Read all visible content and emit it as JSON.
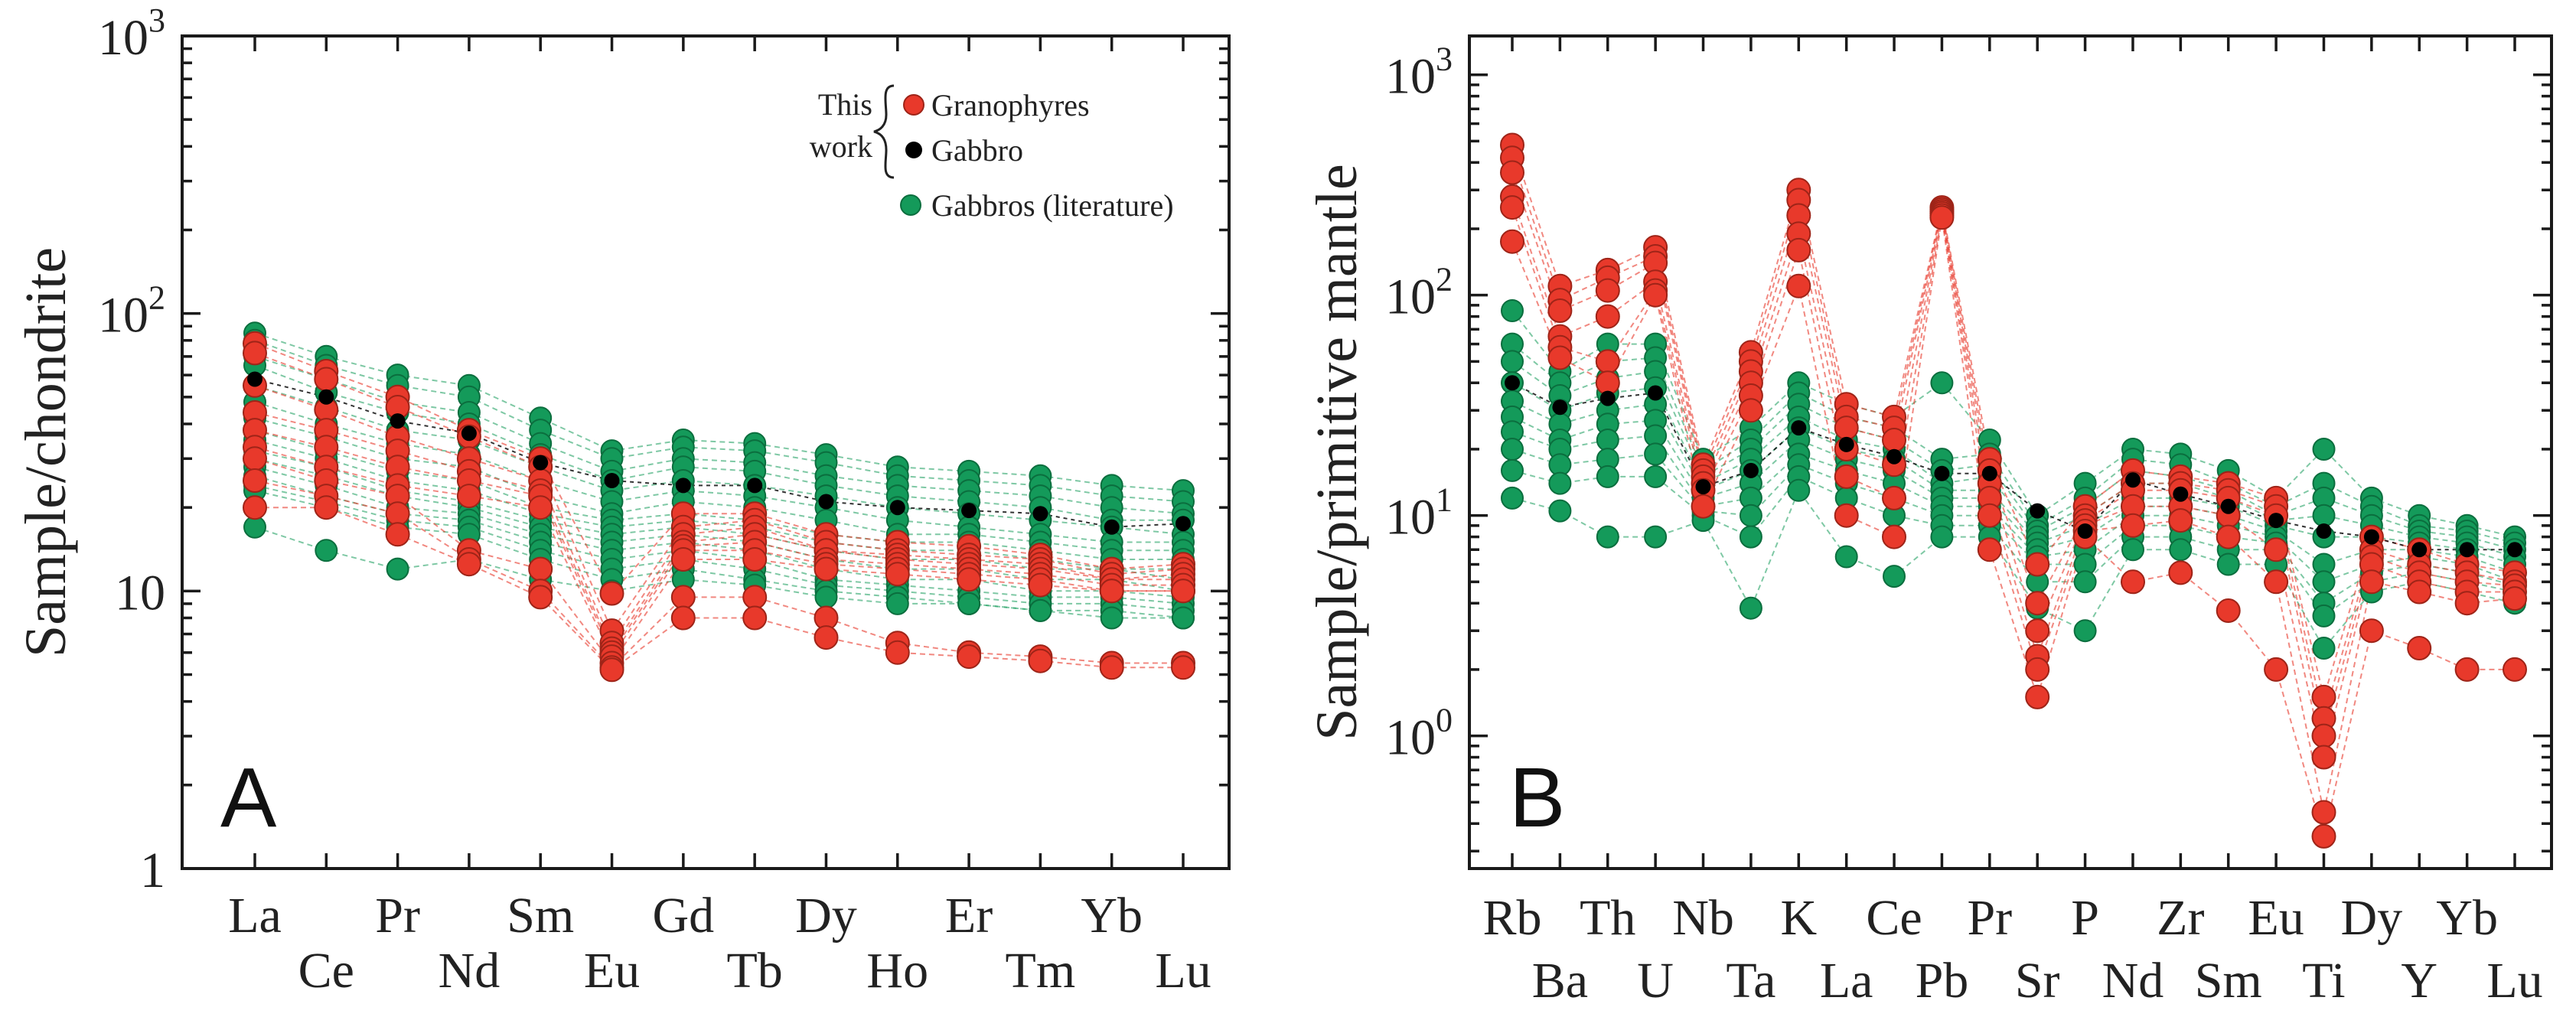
{
  "colors": {
    "granophyre": "#e8392b",
    "granophyre_edge": "#9e2418",
    "gabbro": "#000000",
    "literature": "#149a5a",
    "literature_edge": "#0b6e3e"
  },
  "chart_data": [
    {
      "type": "line",
      "panel_label": "A",
      "title": "",
      "xlabel": "",
      "ylabel": "Sample/chondrite",
      "yscale": "log",
      "ylim": [
        1,
        1000
      ],
      "ytick_labels": [
        {
          "value": 1,
          "base": "1",
          "exp": ""
        },
        {
          "value": 10,
          "base": "10",
          "exp": ""
        },
        {
          "value": 100,
          "base": "10",
          "exp": "2"
        },
        {
          "value": 1000,
          "base": "10",
          "exp": "3"
        }
      ],
      "categories": [
        "La",
        "Ce",
        "Pr",
        "Nd",
        "Sm",
        "Eu",
        "Gd",
        "Tb",
        "Dy",
        "Ho",
        "Er",
        "Tm",
        "Yb",
        "Lu"
      ],
      "legend": {
        "location": "top-right",
        "bracket_label": [
          "This",
          "work"
        ],
        "entries": [
          {
            "label": "Granophyres",
            "group": "granophyre"
          },
          {
            "label": "Gabbro",
            "group": "gabbro"
          },
          {
            "label": "Gabbros (literature)",
            "group": "literature"
          }
        ]
      },
      "series": [
        {
          "name": "Gabbros (literature) 1",
          "group": "literature",
          "values": [
            85,
            70,
            60,
            55,
            42,
            32,
            35,
            34,
            31,
            28,
            27,
            26,
            24,
            23
          ]
        },
        {
          "name": "Gabbros (literature) 2",
          "group": "literature",
          "values": [
            80,
            65,
            55,
            50,
            38,
            30,
            33,
            32,
            29,
            26,
            25,
            24,
            22,
            21
          ]
        },
        {
          "name": "Gabbros (literature) 3",
          "group": "literature",
          "values": [
            70,
            58,
            48,
            44,
            34,
            27,
            30,
            29,
            26,
            24,
            23,
            22,
            20,
            19
          ]
        },
        {
          "name": "Gabbros (literature) 4",
          "group": "literature",
          "values": [
            65,
            52,
            44,
            40,
            31,
            25,
            28,
            27,
            24,
            22,
            21,
            20,
            18,
            18
          ]
        },
        {
          "name": "Gabbros (literature) 5",
          "group": "literature",
          "values": [
            55,
            46,
            38,
            35,
            28,
            23,
            25,
            24,
            22,
            20,
            19,
            18,
            17,
            16
          ]
        },
        {
          "name": "Gabbros (literature) 6",
          "group": "literature",
          "values": [
            48,
            40,
            34,
            31,
            25,
            21,
            23,
            22,
            20,
            18,
            17,
            16,
            15,
            15
          ]
        },
        {
          "name": "Gabbros (literature) 7",
          "group": "literature",
          "values": [
            42,
            36,
            30,
            28,
            22,
            19,
            21,
            20,
            18,
            16,
            16,
            15,
            14,
            14
          ]
        },
        {
          "name": "Gabbros (literature) 8",
          "group": "literature",
          "values": [
            38,
            32,
            27,
            25,
            20,
            18,
            19,
            18,
            16,
            15,
            15,
            14,
            13,
            13
          ]
        },
        {
          "name": "Gabbros (literature) 9",
          "group": "literature",
          "values": [
            35,
            30,
            25,
            23,
            19,
            17,
            18,
            17,
            15,
            14,
            14,
            13,
            12,
            12
          ]
        },
        {
          "name": "Gabbros (literature) 10",
          "group": "literature",
          "values": [
            32,
            28,
            23,
            21,
            18,
            16,
            17,
            16,
            14,
            13,
            13,
            12,
            12,
            11
          ]
        },
        {
          "name": "Gabbros (literature) 11",
          "group": "literature",
          "values": [
            30,
            26,
            22,
            20,
            17,
            15,
            16,
            15,
            13,
            12,
            12,
            11,
            11,
            10
          ]
        },
        {
          "name": "Gabbros (literature) 12",
          "group": "literature",
          "values": [
            28,
            24,
            20,
            19,
            16,
            14,
            15,
            14,
            12,
            11,
            11,
            10,
            10,
            9.5
          ]
        },
        {
          "name": "Gabbros (literature) 13",
          "group": "literature",
          "values": [
            26,
            22,
            19,
            18,
            15,
            13,
            14,
            13,
            11,
            10.5,
            10,
            9.5,
            9.5,
            9
          ]
        },
        {
          "name": "Gabbros (literature) 14",
          "group": "literature",
          "values": [
            24,
            21,
            18,
            17,
            14,
            12,
            13,
            12,
            10.5,
            10,
            9.5,
            9,
            9,
            8.5
          ]
        },
        {
          "name": "Gabbros (literature) 15",
          "group": "literature",
          "values": [
            23,
            20,
            17,
            16,
            13,
            11,
            12,
            11,
            10,
            9.5,
            9,
            8.5,
            8.5,
            8
          ]
        },
        {
          "name": "Gabbros (literature) 16",
          "group": "literature",
          "values": [
            17,
            14,
            12,
            13,
            11,
            10,
            11,
            10.5,
            9.5,
            9,
            9,
            8.5,
            8,
            8
          ]
        },
        {
          "name": "Gabbro 1",
          "group": "gabbro",
          "values": [
            58,
            50,
            41,
            37,
            29,
            25,
            24,
            24,
            21,
            20,
            19.5,
            19,
            17,
            17.5
          ]
        },
        {
          "name": "Granophyres 1",
          "group": "granophyre",
          "values": [
            78,
            62,
            50,
            38,
            30,
            9.8,
            19,
            19,
            16,
            15,
            14.5,
            13.5,
            12,
            12.5
          ]
        },
        {
          "name": "Granophyres 2",
          "group": "granophyre",
          "values": [
            72,
            58,
            46,
            36,
            28,
            7.2,
            17,
            18,
            15,
            14,
            13.5,
            13,
            11.5,
            12
          ]
        },
        {
          "name": "Granophyres 3",
          "group": "granophyre",
          "values": [
            55,
            45,
            36,
            30,
            25,
            6.5,
            16,
            17,
            14,
            13.5,
            13,
            12.5,
            11,
            11.5
          ]
        },
        {
          "name": "Granophyres 4",
          "group": "granophyre",
          "values": [
            44,
            38,
            32,
            27,
            23,
            6.2,
            15,
            16,
            14,
            13,
            12.5,
            12,
            11,
            11
          ]
        },
        {
          "name": "Granophyres 5",
          "group": "granophyre",
          "values": [
            38,
            33,
            28,
            25,
            22,
            6,
            14.5,
            15,
            13,
            12.5,
            12,
            11.5,
            10.5,
            10.5
          ]
        },
        {
          "name": "Granophyres 6",
          "group": "granophyre",
          "values": [
            33,
            28,
            24,
            22,
            20,
            5.8,
            14,
            14,
            12.5,
            12,
            11.5,
            11,
            10,
            10
          ]
        },
        {
          "name": "Granophyres 7",
          "group": "granophyre",
          "values": [
            30,
            25,
            22,
            14,
            12,
            5.5,
            13,
            13,
            12,
            11.5,
            11,
            10.5,
            10,
            10
          ]
        },
        {
          "name": "Granophyres 8",
          "group": "granophyre",
          "values": [
            25,
            22,
            19,
            13,
            10,
            5.3,
            9.5,
            9.5,
            8,
            6.5,
            6,
            5.8,
            5.5,
            5.5
          ]
        },
        {
          "name": "Granophyres 9",
          "group": "granophyre",
          "values": [
            20,
            20,
            16,
            12.5,
            9.5,
            5.2,
            8,
            8,
            6.8,
            6,
            5.8,
            5.6,
            5.3,
            5.3
          ]
        }
      ]
    },
    {
      "type": "line",
      "panel_label": "B",
      "title": "",
      "xlabel": "",
      "ylabel": "Sample/primitive mantle",
      "yscale": "log",
      "ylim": [
        0.25,
        1500
      ],
      "ytick_labels": [
        {
          "value": 1,
          "base": "10",
          "exp": "0"
        },
        {
          "value": 10,
          "base": "10",
          "exp": "1"
        },
        {
          "value": 100,
          "base": "10",
          "exp": "2"
        },
        {
          "value": 1000,
          "base": "10",
          "exp": "3"
        }
      ],
      "categories": [
        "Rb",
        "Ba",
        "Th",
        "U",
        "Nb",
        "Ta",
        "K",
        "La",
        "Ce",
        "Pb",
        "Pr",
        "Sr",
        "P",
        "Nd",
        "Zr",
        "Sm",
        "Eu",
        "Ti",
        "Dy",
        "Y",
        "Yb",
        "Lu"
      ],
      "series": [
        {
          "name": "Gabbros (literature) 1",
          "group": "literature",
          "values": [
            85,
            45,
            60,
            60,
            18,
            25,
            40,
            32,
            28,
            40,
            22,
            10,
            14,
            20,
            19,
            16,
            12,
            20,
            12,
            10,
            9,
            8
          ]
        },
        {
          "name": "Gabbros (literature) 2",
          "group": "literature",
          "values": [
            60,
            40,
            50,
            52,
            16,
            22,
            36,
            28,
            25,
            18,
            19,
            9,
            12,
            18,
            17,
            14,
            11,
            14,
            11,
            9,
            8.5,
            7.5
          ]
        },
        {
          "name": "Gabbros (literature) 3",
          "group": "literature",
          "values": [
            50,
            35,
            42,
            45,
            15,
            20,
            32,
            25,
            22,
            16,
            17,
            8.5,
            11,
            16,
            15,
            13,
            10,
            12,
            10,
            8.5,
            8,
            7
          ]
        },
        {
          "name": "Gabbros (literature) 4",
          "group": "literature",
          "values": [
            40,
            30,
            36,
            38,
            14,
            18,
            28,
            22,
            20,
            14,
            15,
            8,
            10,
            14,
            14,
            12,
            9.5,
            10,
            9,
            8,
            7.5,
            6.5
          ]
        },
        {
          "name": "Gabbros (literature) 5",
          "group": "literature",
          "values": [
            33,
            26,
            30,
            32,
            13,
            16,
            25,
            20,
            18,
            13,
            13,
            7.5,
            9,
            12,
            12,
            11,
            9,
            8,
            8,
            7.5,
            7,
            6
          ]
        },
        {
          "name": "Gabbros (literature) 6",
          "group": "literature",
          "values": [
            28,
            22,
            26,
            27,
            12,
            14,
            22,
            18,
            16,
            12,
            12,
            7,
            8,
            11,
            11,
            10,
            8.5,
            6,
            7,
            7,
            6.5,
            5.5
          ]
        },
        {
          "name": "Gabbros (literature) 7",
          "group": "literature",
          "values": [
            24,
            20,
            22,
            23,
            11,
            12,
            19,
            16,
            14,
            11,
            11,
            6.5,
            7,
            10,
            10,
            9,
            8,
            5,
            6,
            6.5,
            6,
            5
          ]
        },
        {
          "name": "Gabbros (literature) 8",
          "group": "literature",
          "values": [
            20,
            17,
            18,
            19,
            10.5,
            10,
            17,
            14,
            12,
            10,
            10,
            6,
            6,
            9,
            9,
            8,
            7.5,
            4,
            5.5,
            6,
            5.5,
            4.8
          ]
        },
        {
          "name": "Gabbros (literature) 9",
          "group": "literature",
          "values": [
            16,
            14,
            15,
            15,
            10,
            8,
            15,
            12,
            10,
            9,
            9,
            5,
            5,
            8,
            8,
            7,
            7,
            3.5,
            5,
            5.5,
            5,
            4.5
          ]
        },
        {
          "name": "Gabbros (literature) 10",
          "group": "literature",
          "values": [
            12,
            10.5,
            8,
            8,
            9.5,
            3.8,
            13,
            6.5,
            5.3,
            8,
            8,
            3.8,
            3,
            7,
            7,
            6,
            6,
            2.5,
            4.5,
            5,
            4.5,
            4
          ]
        },
        {
          "name": "Gabbro 1",
          "group": "gabbro",
          "values": [
            40,
            31,
            34,
            36,
            13.5,
            16,
            25,
            21,
            18.5,
            15.5,
            15.5,
            10.5,
            8.5,
            14.5,
            12.5,
            11,
            9.5,
            8.5,
            8,
            7,
            7,
            7
          ]
        },
        {
          "name": "Granophyres 1",
          "group": "granophyre",
          "values": [
            480,
            110,
            130,
            165,
            17,
            55,
            300,
            32,
            28,
            250,
            18,
            6,
            11,
            16,
            15,
            14,
            12,
            1.5,
            8,
            7,
            6,
            5.5
          ]
        },
        {
          "name": "Granophyres 2",
          "group": "granophyre",
          "values": [
            420,
            95,
            120,
            150,
            16,
            50,
            270,
            28,
            25,
            245,
            16,
            4,
            10,
            14,
            14,
            13,
            11,
            1.2,
            7,
            6,
            5.5,
            5
          ]
        },
        {
          "name": "Granophyres 3",
          "group": "granophyre",
          "values": [
            360,
            85,
            105,
            140,
            15,
            45,
            230,
            25,
            22,
            240,
            14,
            3,
            9.5,
            13,
            13,
            12,
            10,
            1,
            6.5,
            5.5,
            5,
            4.8
          ]
        },
        {
          "name": "Granophyres 4",
          "group": "granophyre",
          "values": [
            280,
            65,
            80,
            115,
            14,
            40,
            190,
            20,
            17,
            235,
            12,
            2.3,
            9,
            11,
            11,
            10,
            7,
            0.8,
            6,
            5,
            4.5,
            4.5
          ]
        },
        {
          "name": "Granophyres 5",
          "group": "granophyre",
          "values": [
            250,
            58,
            50,
            105,
            13,
            35,
            160,
            15,
            12,
            230,
            10,
            2,
            8.5,
            9,
            9.5,
            8,
            5,
            0.45,
            5,
            4.5,
            4,
            4.2
          ]
        },
        {
          "name": "Granophyres 6",
          "group": "granophyre",
          "values": [
            175,
            52,
            40,
            100,
            11,
            30,
            110,
            10,
            8,
            225,
            7,
            1.5,
            8,
            5,
            5.5,
            3.7,
            2,
            0.35,
            3,
            2.5,
            2,
            2
          ]
        }
      ]
    }
  ]
}
